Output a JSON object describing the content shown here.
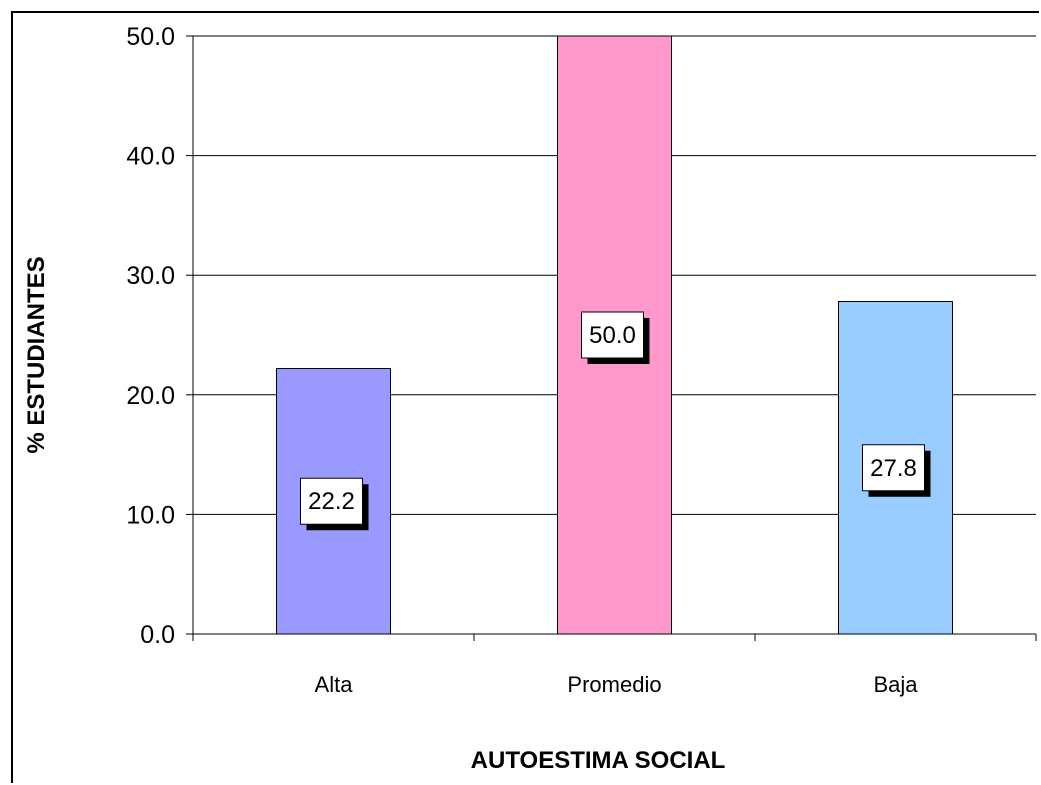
{
  "chart_data": {
    "type": "bar",
    "categories": [
      "Alta",
      "Promedio",
      "Baja"
    ],
    "values": [
      22.2,
      50.0,
      27.8
    ],
    "data_labels": [
      "22.2",
      "50.0",
      "27.8"
    ],
    "bar_colors": [
      "#9999ff",
      "#ff99cc",
      "#99ccff"
    ],
    "xlabel": "AUTOESTIMA SOCIAL",
    "ylabel": "% ESTUDIANTES",
    "ylim": [
      0,
      50
    ],
    "yticks": [
      0,
      10,
      20,
      30,
      40,
      50
    ],
    "ytick_labels": [
      "0.0",
      "10.0",
      "20.0",
      "30.0",
      "40.0",
      "50.0"
    ],
    "grid": true,
    "legend": "none"
  }
}
